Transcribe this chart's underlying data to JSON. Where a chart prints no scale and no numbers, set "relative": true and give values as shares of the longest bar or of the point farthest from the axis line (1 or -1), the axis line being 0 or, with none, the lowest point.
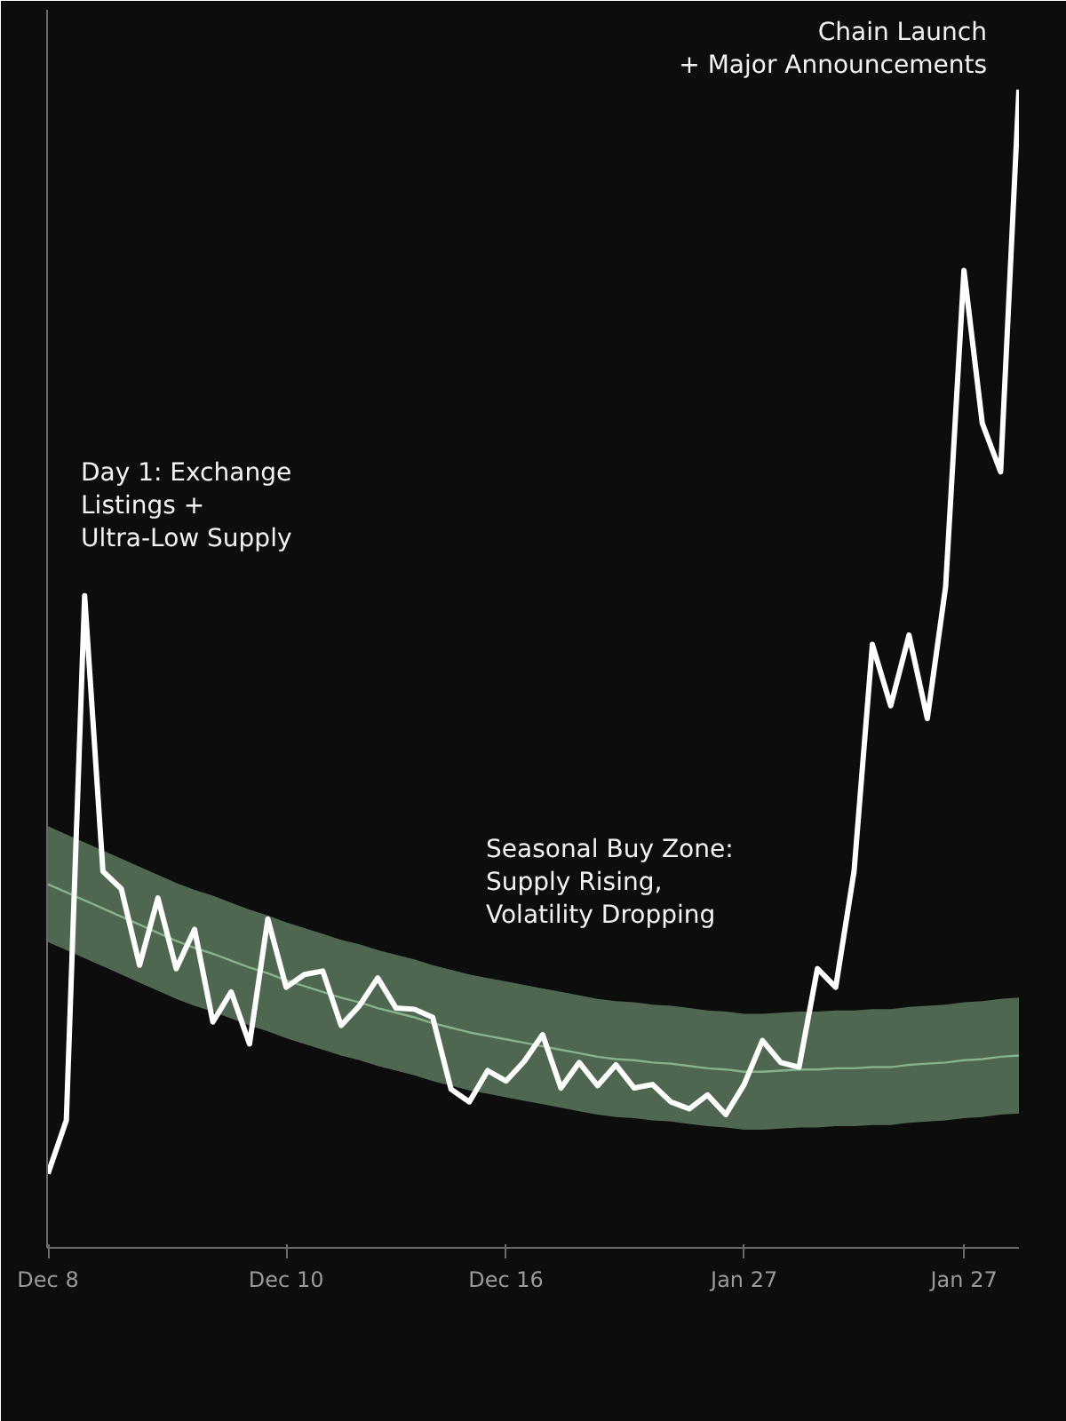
{
  "chart_data": {
    "type": "line",
    "relative": true,
    "annotations": [
      "Day 1: Exchange\nListings +\nUltra-Low Supply",
      "Seasonal Buy Zone:\nSupply Rising,\nVolatility Dropping",
      "Chain Launch\n+ Major Announcements"
    ],
    "categories": [
      "Dec 8",
      null,
      null,
      null,
      null,
      null,
      null,
      null,
      null,
      null,
      null,
      null,
      null,
      "Dec 10",
      null,
      null,
      null,
      null,
      null,
      null,
      null,
      null,
      null,
      null,
      null,
      "Dec 16",
      null,
      null,
      null,
      null,
      null,
      null,
      null,
      null,
      null,
      null,
      null,
      null,
      "Jan 27",
      null,
      null,
      null,
      null,
      null,
      null,
      null,
      null,
      null,
      null,
      null,
      "Jan 27",
      null,
      null,
      null
    ],
    "grid": false,
    "tick_labels": "x",
    "series": [
      {
        "color": "#86b38b",
        "values": [
          0.314,
          0.307,
          0.3,
          0.293,
          0.286,
          0.279,
          0.272,
          0.265,
          0.259,
          0.254,
          0.248,
          0.242,
          0.237,
          0.231,
          0.226,
          0.221,
          0.216,
          0.212,
          0.207,
          0.203,
          0.199,
          0.194,
          0.19,
          0.186,
          0.183,
          0.18,
          0.177,
          0.174,
          0.171,
          0.168,
          0.165,
          0.163,
          0.162,
          0.16,
          0.159,
          0.157,
          0.155,
          0.154,
          0.152,
          0.152,
          0.153,
          0.154,
          0.154,
          0.155,
          0.155,
          0.156,
          0.156,
          0.158,
          0.159,
          0.16,
          0.162,
          0.163,
          0.165,
          0.166
        ],
        "lower": [
          0.264,
          0.257,
          0.25,
          0.243,
          0.236,
          0.229,
          0.222,
          0.215,
          0.209,
          0.204,
          0.198,
          0.192,
          0.187,
          0.181,
          0.176,
          0.171,
          0.166,
          0.162,
          0.157,
          0.153,
          0.149,
          0.144,
          0.14,
          0.136,
          0.133,
          0.13,
          0.127,
          0.124,
          0.121,
          0.118,
          0.115,
          0.113,
          0.112,
          0.11,
          0.109,
          0.107,
          0.105,
          0.104,
          0.102,
          0.102,
          0.103,
          0.104,
          0.104,
          0.105,
          0.105,
          0.106,
          0.106,
          0.108,
          0.109,
          0.11,
          0.112,
          0.113,
          0.115,
          0.116
        ],
        "upper": [
          0.364,
          0.357,
          0.35,
          0.343,
          0.336,
          0.329,
          0.322,
          0.315,
          0.309,
          0.304,
          0.298,
          0.292,
          0.287,
          0.281,
          0.276,
          0.271,
          0.266,
          0.262,
          0.257,
          0.253,
          0.249,
          0.244,
          0.24,
          0.236,
          0.233,
          0.23,
          0.227,
          0.224,
          0.221,
          0.218,
          0.215,
          0.213,
          0.212,
          0.21,
          0.209,
          0.207,
          0.205,
          0.204,
          0.202,
          0.202,
          0.203,
          0.204,
          0.204,
          0.205,
          0.205,
          0.206,
          0.206,
          0.208,
          0.209,
          0.21,
          0.212,
          0.213,
          0.215,
          0.216
        ]
      },
      {
        "color": "#ffffff",
        "values": [
          0.064,
          0.11,
          0.563,
          0.325,
          0.31,
          0.244,
          0.302,
          0.241,
          0.275,
          0.195,
          0.221,
          0.176,
          0.284,
          0.225,
          0.236,
          0.239,
          0.192,
          0.209,
          0.233,
          0.207,
          0.206,
          0.199,
          0.137,
          0.126,
          0.153,
          0.144,
          0.161,
          0.184,
          0.138,
          0.16,
          0.14,
          0.158,
          0.138,
          0.141,
          0.126,
          0.12,
          0.132,
          0.115,
          0.141,
          0.179,
          0.16,
          0.156,
          0.241,
          0.225,
          0.325,
          0.521,
          0.468,
          0.529,
          0.457,
          0.571,
          0.844,
          0.712,
          0.67,
          1.0
        ]
      }
    ]
  }
}
